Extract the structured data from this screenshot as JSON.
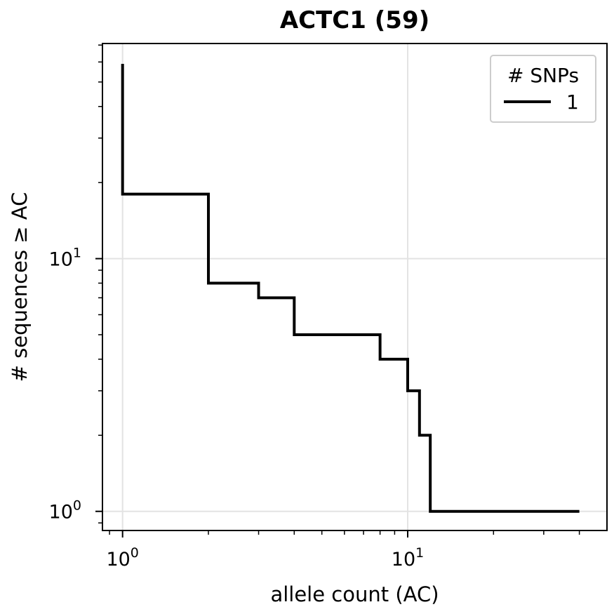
{
  "chart_data": {
    "type": "line",
    "title": "ACTC1 (59)",
    "xlabel": "allele count (AC)",
    "ylabel": "# sequences ≥ AC",
    "x_scale": "log",
    "y_scale": "log",
    "xlim": [
      0.85,
      50
    ],
    "ylim": [
      0.84,
      71
    ],
    "grid": true,
    "legend": {
      "title": "# SNPs",
      "placement": "top-right"
    },
    "x_ticks": [
      {
        "value": 1,
        "base": "10",
        "exp": "0"
      },
      {
        "value": 10,
        "base": "10",
        "exp": "1"
      }
    ],
    "y_ticks": [
      {
        "value": 1,
        "base": "10",
        "exp": "0"
      },
      {
        "value": 10,
        "base": "10",
        "exp": "1"
      }
    ],
    "series": [
      {
        "name": "1",
        "color": "#000000",
        "step": "post",
        "x": [
          1,
          1,
          2,
          3,
          4,
          8,
          10,
          11,
          12,
          40
        ],
        "y": [
          59,
          18,
          8,
          7,
          5,
          4,
          3,
          2,
          1,
          1
        ]
      }
    ]
  }
}
